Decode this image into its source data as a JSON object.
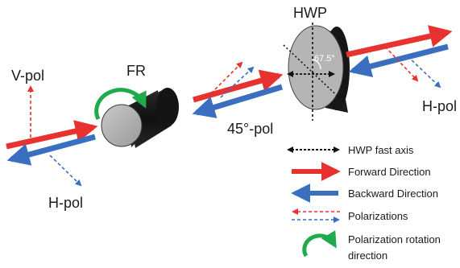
{
  "labels": {
    "v_pol": "V-pol",
    "fr": "FR",
    "h_pol_left": "H-pol",
    "pol_45": "45°-pol",
    "hwp": "HWP",
    "angle": "67.5°",
    "h_pol_right": "H-pol"
  },
  "legend": [
    {
      "icon": "dashed-double-arrow-icon",
      "label": "HWP fast axis"
    },
    {
      "icon": "red-arrow-icon",
      "label": "Forward Direction"
    },
    {
      "icon": "blue-arrow-icon",
      "label": "Backward Direction"
    },
    {
      "icon": "dashed-red-blue-arrows-icon",
      "label": "Polarizations"
    },
    {
      "icon": "green-curved-arrow-icon",
      "label": "Polarization rotation"
    },
    {
      "icon": "",
      "label": "direction"
    }
  ],
  "colors": {
    "forward": "#e8322f",
    "backward": "#3a6fc0",
    "rotation": "#1faa4b",
    "fast_axis": "#111111",
    "component_dark": "#1b1b1b",
    "component_face": "#b5b5b5"
  }
}
